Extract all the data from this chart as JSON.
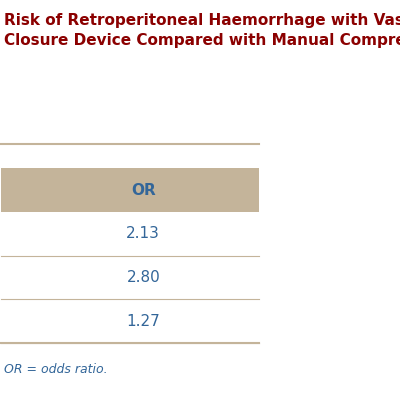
{
  "title_line1": "Risk of Retroperitoneal Haemorrhage with Vascular",
  "title_line2": "Closure Device Compared with Manual Compression",
  "title_color": "#8B0000",
  "title_fontsize": 11,
  "header_row": [
    "",
    "OR"
  ],
  "data_rows": [
    [
      "",
      "2.13"
    ],
    [
      "",
      "2.80"
    ],
    [
      "",
      "1.27"
    ]
  ],
  "header_bg": "#C4B49A",
  "row_divider_color": "#C4B49A",
  "data_color": "#336699",
  "header_color": "#336699",
  "footnote": "OR = odds ratio.",
  "footnote_color": "#336699",
  "bg_color": "#ffffff",
  "title_separator_color": "#C4B49A",
  "bottom_line_color": "#C4B49A"
}
